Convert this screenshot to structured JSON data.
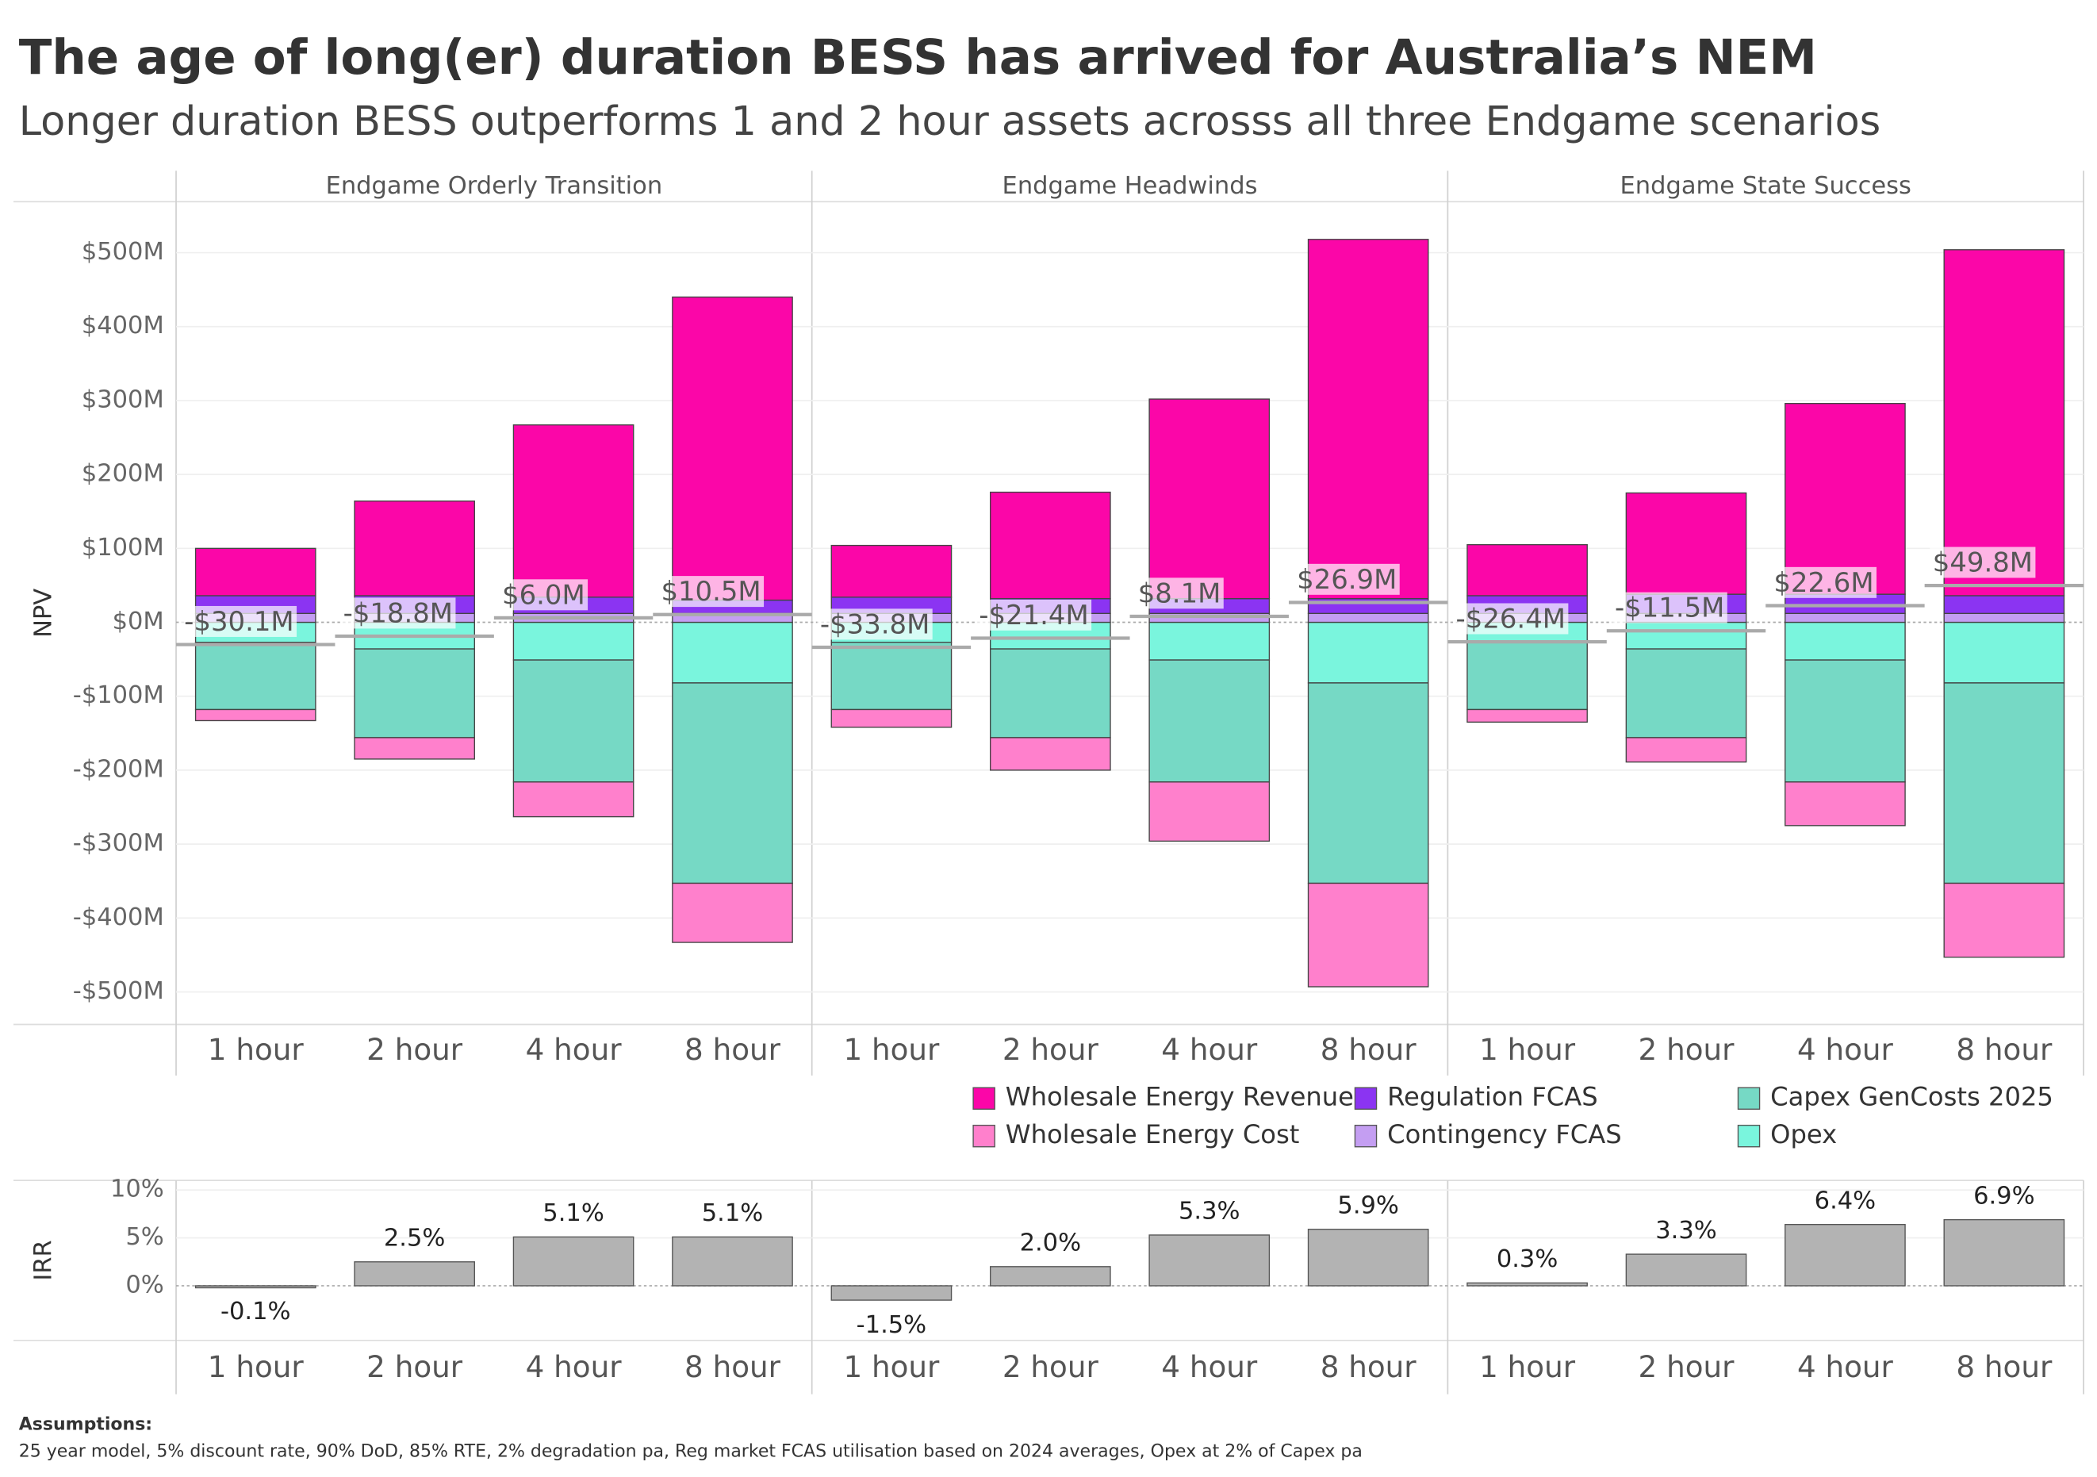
{
  "chart_data": [
    {
      "type": "bar",
      "stacked": true,
      "title": "The age of long(er) duration BESS has arrived for Australia’s NEM",
      "subtitle": "Longer duration BESS outperforms 1 and 2 hour assets acrosss all three Endgame scenarios",
      "y_label": "NPV",
      "panels": [
        "Endgame Orderly Transition",
        "Endgame Headwinds",
        "Endgame State Success"
      ],
      "categories": [
        "1 hour",
        "2 hour",
        "4 hour",
        "8 hour"
      ],
      "ylim": [
        -544,
        569
      ],
      "yticks": [
        {
          "value": 500,
          "label": "$500M"
        },
        {
          "value": 400,
          "label": "$400M"
        },
        {
          "value": 300,
          "label": "$300M"
        },
        {
          "value": 200,
          "label": "$200M"
        },
        {
          "value": 100,
          "label": "$100M"
        },
        {
          "value": 0,
          "label": "$0M"
        },
        {
          "value": -100,
          "label": "-$100M"
        },
        {
          "value": -200,
          "label": "-$200M"
        },
        {
          "value": -300,
          "label": "-$300M"
        },
        {
          "value": -400,
          "label": "-$400M"
        },
        {
          "value": -500,
          "label": "-$500M"
        }
      ],
      "grid": true,
      "legend": "bottom",
      "series": [
        {
          "name": "Wholesale Energy Revenue",
          "color": "#fb06a8",
          "values": [
            [
              64,
              128,
              233,
              410
            ],
            [
              70,
              144,
              270,
              486
            ],
            [
              69,
              137,
              258,
              468
            ]
          ]
        },
        {
          "name": "Wholesale Energy Cost",
          "color": "#ff80cc",
          "values": [
            [
              -15,
              -29,
              -47,
              -80
            ],
            [
              -24,
              -44,
              -80,
              -140
            ],
            [
              -17,
              -33,
              -59,
              -100
            ]
          ]
        },
        {
          "name": "Regulation FCAS",
          "color": "#8b34f2",
          "values": [
            [
              24,
              24,
              22,
              18
            ],
            [
              22,
              20,
              20,
              20
            ],
            [
              24,
              26,
              26,
              24
            ]
          ]
        },
        {
          "name": "Contingency FCAS",
          "color": "#c49ef2",
          "values": [
            [
              12,
              12,
              12,
              12
            ],
            [
              12,
              12,
              12,
              12
            ],
            [
              12,
              12,
              12,
              12
            ]
          ]
        },
        {
          "name": "Capex GenCosts 2025",
          "color": "#76d9c5",
          "values": [
            [
              -91,
              -120,
              -165,
              -271
            ],
            [
              -91,
              -120,
              -165,
              -271
            ],
            [
              -91,
              -120,
              -165,
              -271
            ]
          ]
        },
        {
          "name": "Opex",
          "color": "#7af5dd",
          "values": [
            [
              -27,
              -36,
              -51,
              -82
            ],
            [
              -27,
              -36,
              -51,
              -82
            ],
            [
              -27,
              -36,
              -51,
              -82
            ]
          ]
        }
      ],
      "net": {
        "color": "#aaaaaa",
        "values": [
          [
            -30.1,
            -18.8,
            6.0,
            10.5
          ],
          [
            -33.8,
            -21.4,
            8.1,
            26.9
          ],
          [
            -26.4,
            -11.5,
            22.6,
            49.8
          ]
        ],
        "value_labels": [
          [
            "-$30.1M",
            "-$18.8M",
            "$6.0M",
            "$10.5M"
          ],
          [
            "-$33.8M",
            "-$21.4M",
            "$8.1M",
            "$26.9M"
          ],
          [
            "-$26.4M",
            "-$11.5M",
            "$22.6M",
            "$49.8M"
          ]
        ]
      }
    },
    {
      "type": "bar",
      "y_label": "IRR",
      "categories": [
        "1 hour",
        "2 hour",
        "4 hour",
        "8 hour"
      ],
      "ylim": [
        -5.7,
        11
      ],
      "yticks": [
        {
          "value": 10,
          "label": "10%"
        },
        {
          "value": 5,
          "label": "5%"
        },
        {
          "value": 0,
          "label": "0%"
        }
      ],
      "grid": true,
      "color": "#b3b3b3",
      "values": [
        [
          -0.1,
          2.5,
          5.1,
          5.1
        ],
        [
          -1.5,
          2.0,
          5.3,
          5.9
        ],
        [
          0.3,
          3.3,
          6.4,
          6.9
        ]
      ],
      "value_labels": [
        [
          "-0.1%",
          "2.5%",
          "5.1%",
          "5.1%"
        ],
        [
          "-1.5%",
          "2.0%",
          "5.3%",
          "5.9%"
        ],
        [
          "0.3%",
          "3.3%",
          "6.4%",
          "6.9%"
        ]
      ]
    }
  ],
  "notes": {
    "title": "Assumptions:",
    "text": "25 year model, 5% discount rate, 90% DoD, 85% RTE, 2% degradation pa, Reg market FCAS utilisation based on 2024 averages, Opex at 2% of Capex pa"
  }
}
